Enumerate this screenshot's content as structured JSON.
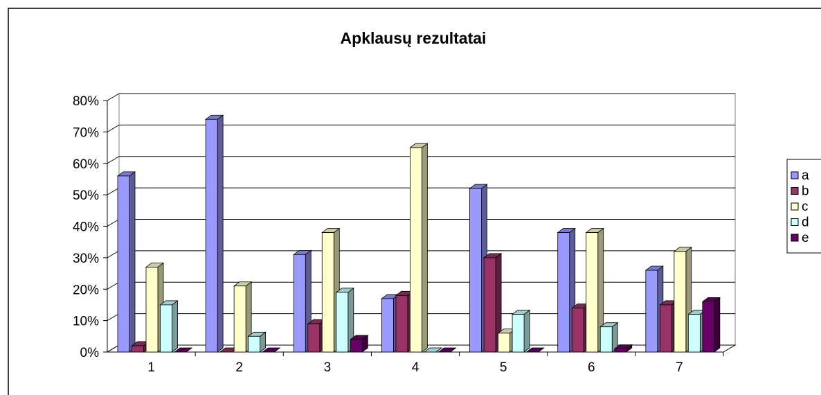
{
  "chart_data": {
    "type": "bar3d",
    "title": "Apklausų rezultatai",
    "categories": [
      "1",
      "2",
      "3",
      "4",
      "5",
      "6",
      "7"
    ],
    "series": [
      {
        "name": "a",
        "color": "#9999ff",
        "values": [
          56,
          74,
          31,
          17,
          52,
          38,
          26
        ]
      },
      {
        "name": "b",
        "color": "#993366",
        "values": [
          2,
          0,
          9,
          18,
          30,
          14,
          15
        ]
      },
      {
        "name": "c",
        "color": "#ffffcc",
        "values": [
          27,
          21,
          38,
          65,
          6,
          38,
          32
        ]
      },
      {
        "name": "d",
        "color": "#ccffff",
        "values": [
          15,
          5,
          19,
          0,
          12,
          8,
          12
        ]
      },
      {
        "name": "e",
        "color": "#660066",
        "values": [
          0,
          0,
          4,
          0,
          0,
          1,
          16
        ]
      }
    ],
    "ylim": [
      0,
      80
    ],
    "yticks": [
      {
        "value": 0,
        "label": "0%"
      },
      {
        "value": 10,
        "label": "10%"
      },
      {
        "value": 20,
        "label": "20%"
      },
      {
        "value": 30,
        "label": "30%"
      },
      {
        "value": 40,
        "label": "40%"
      },
      {
        "value": 50,
        "label": "50%"
      },
      {
        "value": 60,
        "label": "60%"
      },
      {
        "value": 70,
        "label": "70%"
      },
      {
        "value": 80,
        "label": "80%"
      }
    ],
    "grid": true,
    "legend": "right"
  }
}
